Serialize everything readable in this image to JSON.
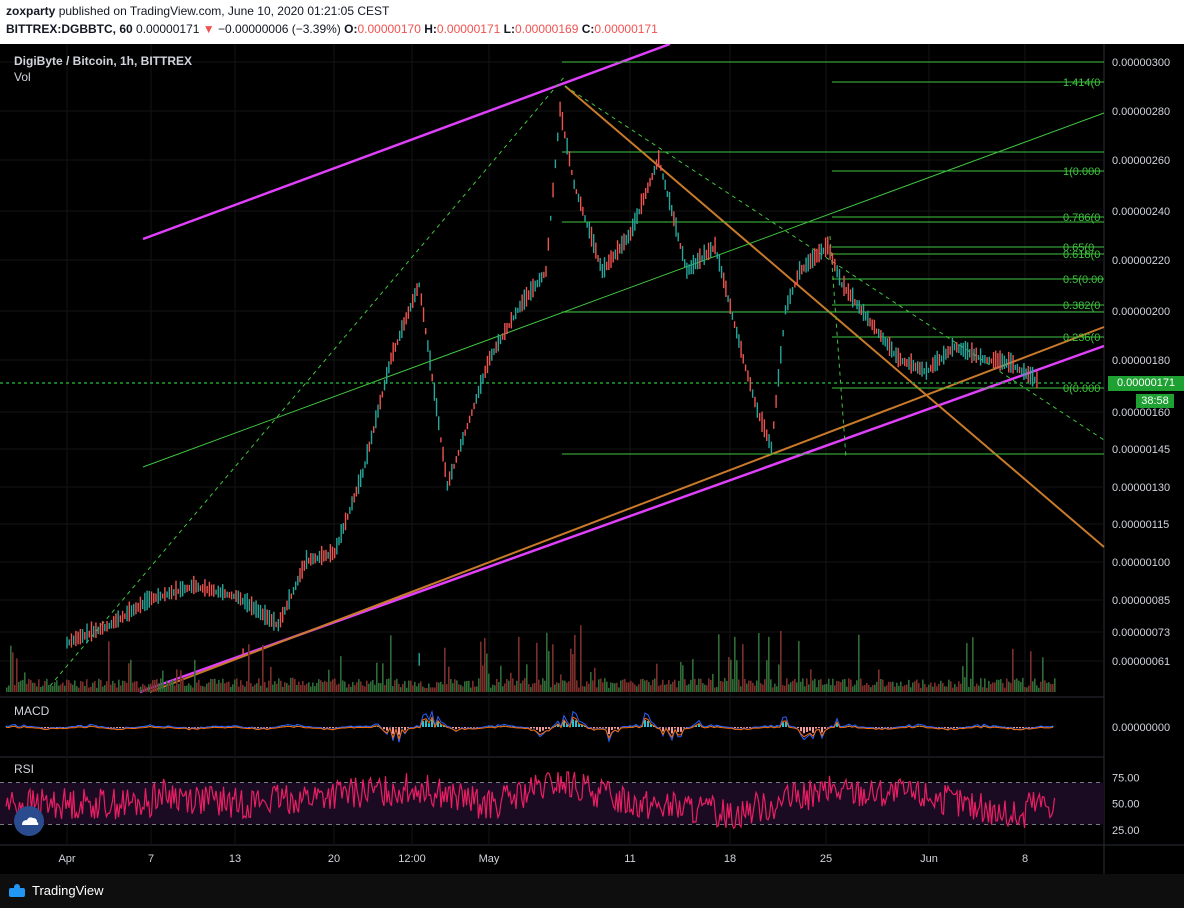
{
  "header": {
    "author": "zoxparty",
    "published": " published on TradingView.com, June 10, 2020 01:21:05 CEST",
    "symbol": "BITTREX:DGBBTC, 60",
    "last": "0.00000171",
    "change_arrow": "▼",
    "change": "−0.00000006 (−3.39%)",
    "o_label": "O:",
    "o": "0.00000170",
    "h_label": "H:",
    "h": "0.00000171",
    "l_label": "L:",
    "l": "0.00000169",
    "c_label": "C:",
    "c": "0.00000171"
  },
  "overlay": {
    "title": "DigiByte / Bitcoin, 1h, BITTREX",
    "vol": "Vol",
    "macd": "MACD",
    "rsi": "RSI"
  },
  "price_badge": "0.00000171",
  "countdown_badge": "38:58",
  "footer": {
    "brand": "TradingView",
    "logo_icon": "tradingview-logo-icon"
  },
  "colors": {
    "up": "#26a69a",
    "down": "#ef5350",
    "magenta": "#e040fb",
    "orange": "#c87a2a",
    "fib": "#3fc43f",
    "rsi": "#e91e63",
    "macd": "#2962ff",
    "signal": "#ff6d00",
    "bg": "#000000"
  },
  "chart_data": [
    {
      "type": "line",
      "title": "DigiByte / Bitcoin, 1h, BITTREX",
      "y_ticks": [
        "0.00000300",
        "0.00000280",
        "0.00000260",
        "0.00000240",
        "0.00000220",
        "0.00000200",
        "0.00000180",
        "0.00000160",
        "0.00000145",
        "0.00000130",
        "0.00000115",
        "0.00000100",
        "0.00000085",
        "0.00000073",
        "0.00000061"
      ],
      "x_ticks": [
        "Apr",
        "7",
        "13",
        "20",
        "12:00",
        "May",
        "11",
        "18",
        "25",
        "Jun",
        "8"
      ],
      "fib_levels": [
        "1.414(0",
        "1(0.000",
        "0.786(0",
        "0.65(0",
        "0.618(0",
        "0.5(0.00",
        "0.382(0",
        "0.236(0",
        "0(0.000"
      ],
      "series": [
        {
          "x": [
            "Mar 29",
            "Apr 1",
            "Apr 4",
            "Apr 7",
            "Apr 10",
            "Apr 13",
            "Apr 16",
            "Apr 18",
            "Apr 20",
            "Apr 22",
            "Apr 24",
            "Apr 26",
            "Apr 28",
            "May 1",
            "May 3",
            "May 5",
            "May 6",
            "May 7",
            "May 9",
            "May 11",
            "May 13",
            "May 15",
            "May 17",
            "May 19",
            "May 20",
            "May 21",
            "May 22",
            "May 23",
            "May 25",
            "May 26",
            "May 28",
            "May 30",
            "Jun 1",
            "Jun 3",
            "Jun 5",
            "Jun 7",
            "Jun 9"
          ],
          "y": [
            6.1e-07,
            6.8e-07,
            7.5e-07,
            8.5e-07,
            9e-07,
            8.6e-07,
            7.5e-07,
            1e-06,
            1.03e-06,
            1.35e-06,
            1.8e-06,
            2.1e-06,
            1.3e-06,
            1.8e-06,
            2e-06,
            2.15e-06,
            2.8e-06,
            2.5e-06,
            2.15e-06,
            2.3e-06,
            2.6e-06,
            2.15e-06,
            2.25e-06,
            1.8e-06,
            1.6e-06,
            1.45e-06,
            2e-06,
            2.15e-06,
            2.25e-06,
            2.1e-06,
            1.95e-06,
            1.8e-06,
            1.75e-06,
            1.85e-06,
            1.8e-06,
            1.78e-06,
            1.71e-06
          ]
        }
      ],
      "last_price": 1.71e-06
    },
    {
      "type": "line",
      "title": "MACD",
      "y_ticks": [
        "0.00000000"
      ],
      "series": [
        {
          "name": "",
          "x": [
            "Apr",
            "May",
            "Jun"
          ],
          "y": [
            0,
            0,
            0
          ]
        }
      ]
    },
    {
      "type": "line",
      "title": "RSI",
      "y_ticks": [
        "75.00",
        "50.00",
        "25.00"
      ],
      "bands": [
        70,
        30
      ],
      "series": [
        {
          "x": [
            "Mar 29",
            "Apr 7",
            "Apr 13",
            "Apr 20",
            "Apr 26",
            "May 1",
            "May 6",
            "May 11",
            "May 18",
            "May 25",
            "Jun 1",
            "Jun 8"
          ],
          "y": [
            55,
            60,
            50,
            58,
            65,
            48,
            70,
            52,
            40,
            62,
            58,
            35
          ]
        }
      ]
    }
  ]
}
